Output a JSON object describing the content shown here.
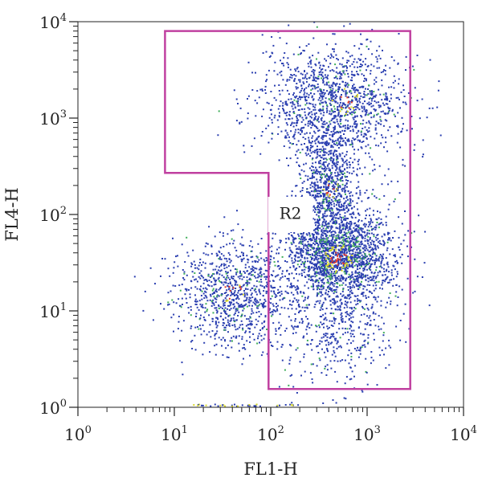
{
  "chart_data": {
    "type": "scatter",
    "title": "",
    "xlabel": "FL1-H",
    "ylabel": "FL4-H",
    "x_scale": "log",
    "y_scale": "log",
    "xlim": [
      1,
      10000
    ],
    "ylim": [
      1,
      10000
    ],
    "grid": false,
    "x_ticks": [
      {
        "base": "10",
        "exp": "0",
        "value": 1
      },
      {
        "base": "10",
        "exp": "1",
        "value": 10
      },
      {
        "base": "10",
        "exp": "2",
        "value": 100
      },
      {
        "base": "10",
        "exp": "3",
        "value": 1000
      },
      {
        "base": "10",
        "exp": "4",
        "value": 10000
      }
    ],
    "y_ticks": [
      {
        "base": "10",
        "exp": "0",
        "value": 1
      },
      {
        "base": "10",
        "exp": "1",
        "value": 10
      },
      {
        "base": "10",
        "exp": "2",
        "value": 100
      },
      {
        "base": "10",
        "exp": "3",
        "value": 1000
      },
      {
        "base": "10",
        "exp": "4",
        "value": 10000
      }
    ],
    "density_colors": [
      "#2b3fb0",
      "#3fae5a",
      "#d8d82a",
      "#e23a2a"
    ],
    "gate": {
      "label": "R2",
      "color": "#c040a0",
      "vertices": [
        [
          8,
          8000
        ],
        [
          2800,
          8000
        ],
        [
          2800,
          1.55
        ],
        [
          95,
          1.55
        ],
        [
          95,
          270
        ],
        [
          8,
          270
        ]
      ]
    },
    "populations": [
      {
        "cx": 500,
        "cy": 40,
        "sx": 0.3,
        "sy": 0.28,
        "weight": 0.38
      },
      {
        "cx": 400,
        "cy": 220,
        "sx": 0.14,
        "sy": 0.28,
        "weight": 0.12
      },
      {
        "cx": 450,
        "cy": 1400,
        "sx": 0.38,
        "sy": 0.32,
        "weight": 0.25
      },
      {
        "cx": 40,
        "cy": 15,
        "sx": 0.32,
        "sy": 0.28,
        "weight": 0.18
      },
      {
        "cx": 500,
        "cy": 6,
        "sx": 0.3,
        "sy": 0.3,
        "weight": 0.07
      }
    ],
    "hotspots": [
      {
        "cx": 500,
        "cy": 35,
        "sx": 0.13,
        "sy": 0.12,
        "count": 140
      },
      {
        "cx": 420,
        "cy": 180,
        "sx": 0.07,
        "sy": 0.1,
        "count": 25
      },
      {
        "cx": 600,
        "cy": 1500,
        "sx": 0.12,
        "sy": 0.12,
        "count": 30
      },
      {
        "cx": 40,
        "cy": 16,
        "sx": 0.14,
        "sy": 0.12,
        "count": 25
      }
    ],
    "event_count": 5200
  }
}
